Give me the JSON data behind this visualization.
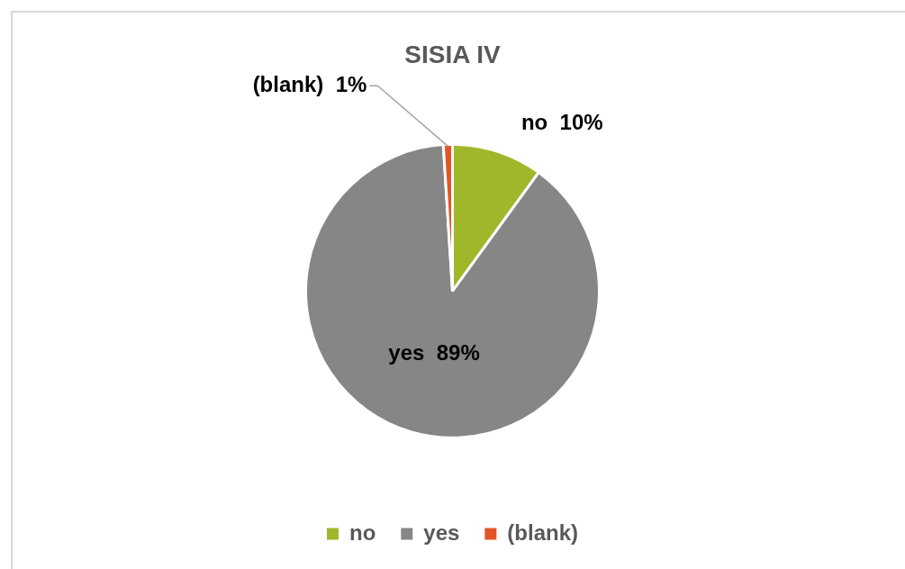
{
  "chart_data": {
    "type": "pie",
    "title": "SISIA IV",
    "categories": [
      "no",
      "yes",
      "(blank)"
    ],
    "values": [
      10,
      89,
      1
    ],
    "colors": [
      "#a0b72b",
      "#868686",
      "#e35428"
    ],
    "value_labels": [
      "10%",
      "89%",
      "1%"
    ],
    "legend": "bottom"
  }
}
